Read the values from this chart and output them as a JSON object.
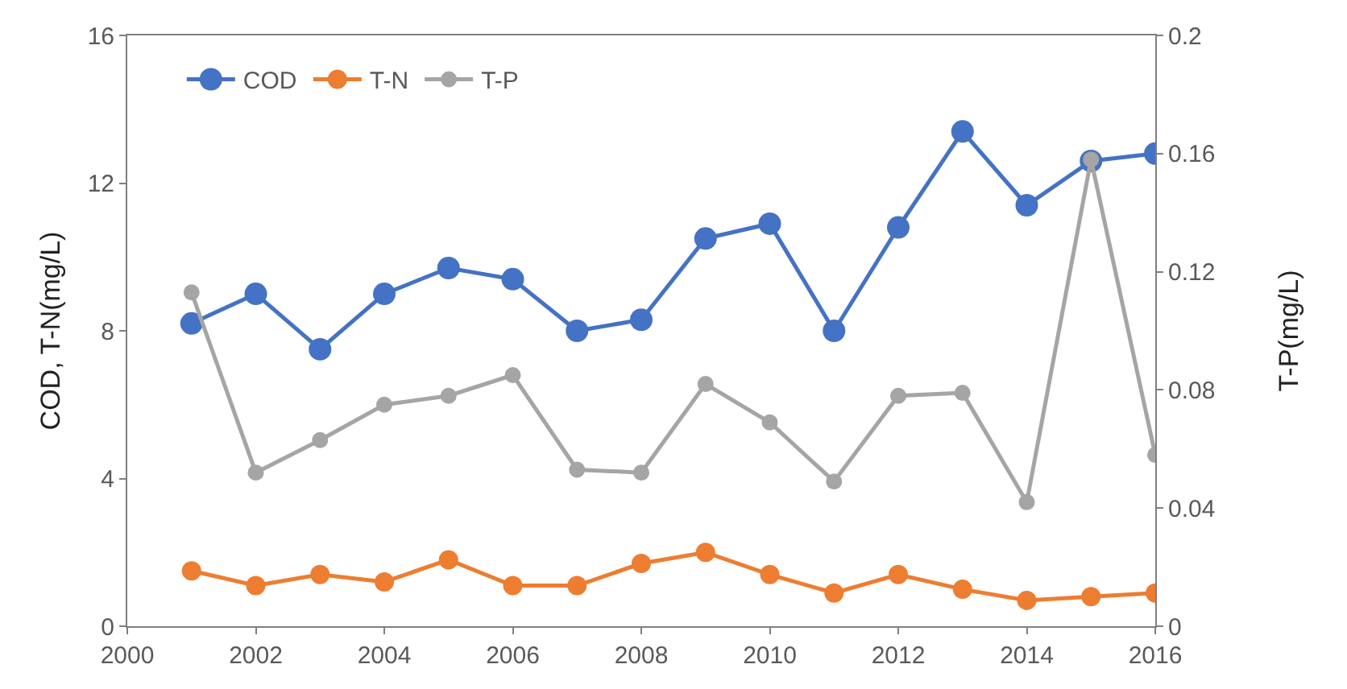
{
  "chart_data": {
    "type": "line",
    "x": [
      2001,
      2002,
      2003,
      2004,
      2005,
      2006,
      2007,
      2008,
      2009,
      2010,
      2011,
      2012,
      2013,
      2014,
      2015,
      2016
    ],
    "series": [
      {
        "name": "COD",
        "color": "#4472c4",
        "values": [
          8.2,
          9.0,
          7.5,
          9.0,
          9.7,
          9.4,
          8.0,
          8.3,
          10.5,
          10.9,
          8.0,
          10.8,
          13.4,
          11.4,
          12.6,
          12.8
        ]
      },
      {
        "name": "T-N",
        "color": "#ed7d31",
        "values": [
          1.5,
          1.1,
          1.4,
          1.2,
          1.8,
          1.1,
          1.1,
          1.7,
          2.0,
          1.4,
          0.9,
          1.4,
          1.0,
          0.7,
          0.8,
          0.9
        ]
      },
      {
        "name": "T-P",
        "color": "#a5a5a5",
        "axis": "y2",
        "values": [
          0.113,
          0.052,
          0.063,
          0.075,
          0.078,
          0.085,
          0.053,
          0.052,
          0.082,
          0.069,
          0.049,
          0.078,
          0.079,
          0.042,
          0.158,
          0.058
        ]
      }
    ],
    "ylabel": "COD, T-N(mg/L)",
    "y2label": "T-P(mg/L)",
    "xlim": [
      2000,
      2016
    ],
    "xticks": [
      2000,
      2002,
      2004,
      2006,
      2008,
      2010,
      2012,
      2014,
      2016
    ],
    "ylim": [
      0,
      16
    ],
    "yticks": [
      0,
      4,
      8,
      12,
      16
    ],
    "y2lim": [
      0,
      0.2
    ],
    "y2ticks": [
      0,
      0.04,
      0.08,
      0.12,
      0.16,
      0.2
    ],
    "legend": "top left",
    "marker": "circle",
    "line_style": "solid"
  }
}
